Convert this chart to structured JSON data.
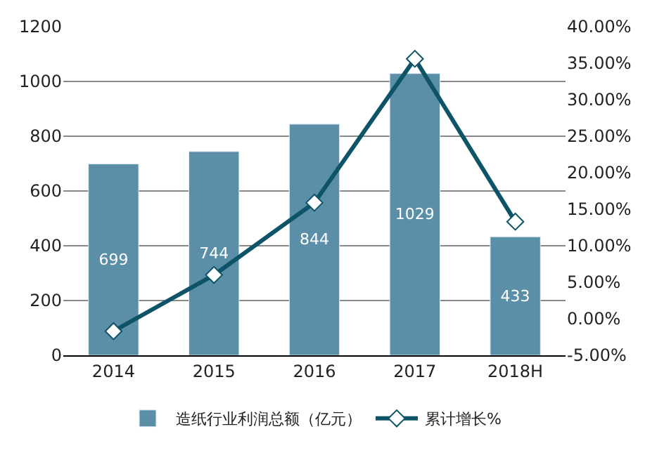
{
  "chart_data": {
    "type": "bar",
    "categories": [
      "2014",
      "2015",
      "2016",
      "2017",
      "2018H"
    ],
    "series": [
      {
        "name": "造纸行业利润总额（亿元）",
        "color": "#5b8fa8",
        "values": [
          699,
          744,
          844,
          1029,
          433
        ],
        "value_labels": [
          "699",
          "744",
          "844",
          "1029",
          "433"
        ]
      },
      {
        "name": "累计增长%",
        "type": "line",
        "axis": "y2",
        "color": "#0e5468",
        "marker": "diamond",
        "values": [
          -1.7,
          6.0,
          15.9,
          35.6,
          13.3
        ]
      }
    ],
    "ylim": [
      0,
      1200
    ],
    "yticks": [
      0,
      200,
      400,
      600,
      800,
      1000,
      1200
    ],
    "y2lim": [
      -5,
      40
    ],
    "y2ticks": [
      {
        "value": -5,
        "label": "-5.00%"
      },
      {
        "value": 0,
        "label": "0.00%"
      },
      {
        "value": 5,
        "label": "5.00%"
      },
      {
        "value": 10,
        "label": "10.00%"
      },
      {
        "value": 15,
        "label": "15.00%"
      },
      {
        "value": 20,
        "label": "20.00%"
      },
      {
        "value": 25,
        "label": "25.00%"
      },
      {
        "value": 30,
        "label": "30.00%"
      },
      {
        "value": 35,
        "label": "35.00%"
      },
      {
        "value": 40,
        "label": "40.00%"
      }
    ],
    "grid": "y",
    "legend": "bottom"
  }
}
